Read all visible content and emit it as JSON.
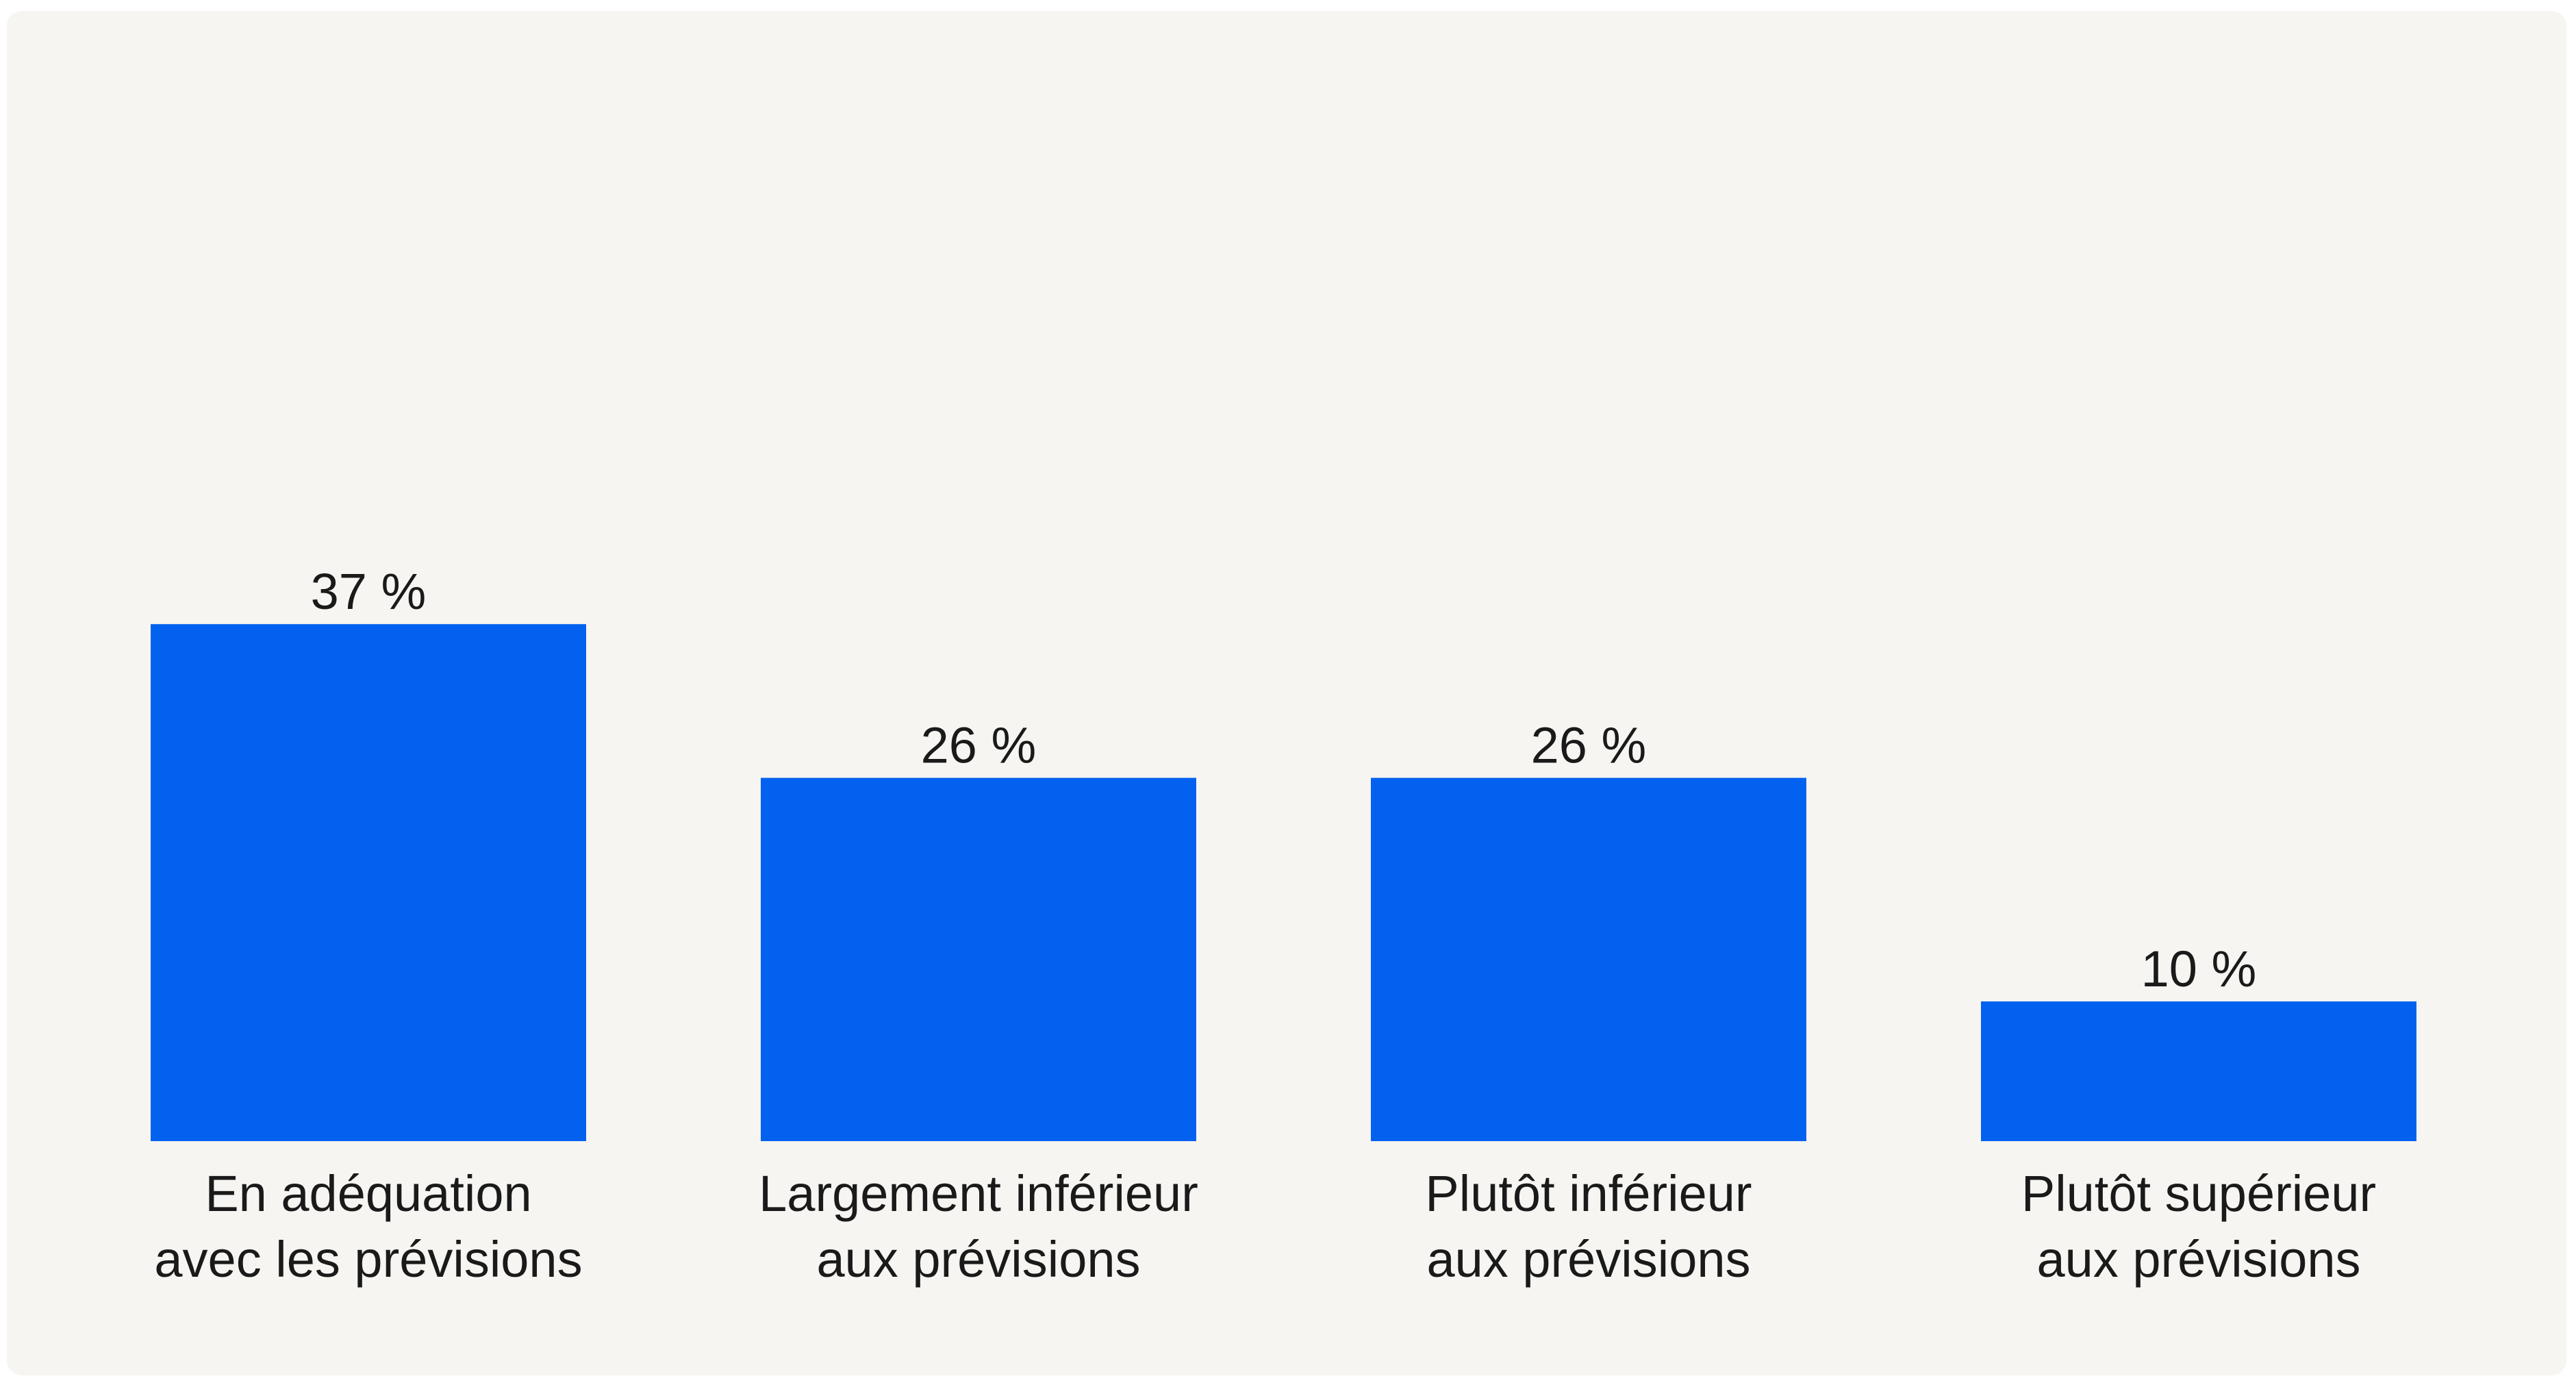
{
  "chart_data": {
    "type": "bar",
    "categories": [
      [
        "En adéquation",
        "avec les prévisions"
      ],
      [
        "Largement inférieur",
        "aux prévisions"
      ],
      [
        "Plutôt inférieur",
        "aux prévisions"
      ],
      [
        "Plutôt supérieur",
        "aux prévisions"
      ]
    ],
    "values": [
      37,
      26,
      26,
      10
    ],
    "value_labels": [
      "37 %",
      "26 %",
      "26 %",
      "10 %"
    ],
    "ylim": [
      0,
      80
    ],
    "grid": false,
    "legend": "none",
    "bar_color": "#0262ef",
    "background_color": "#f6f5f1"
  }
}
